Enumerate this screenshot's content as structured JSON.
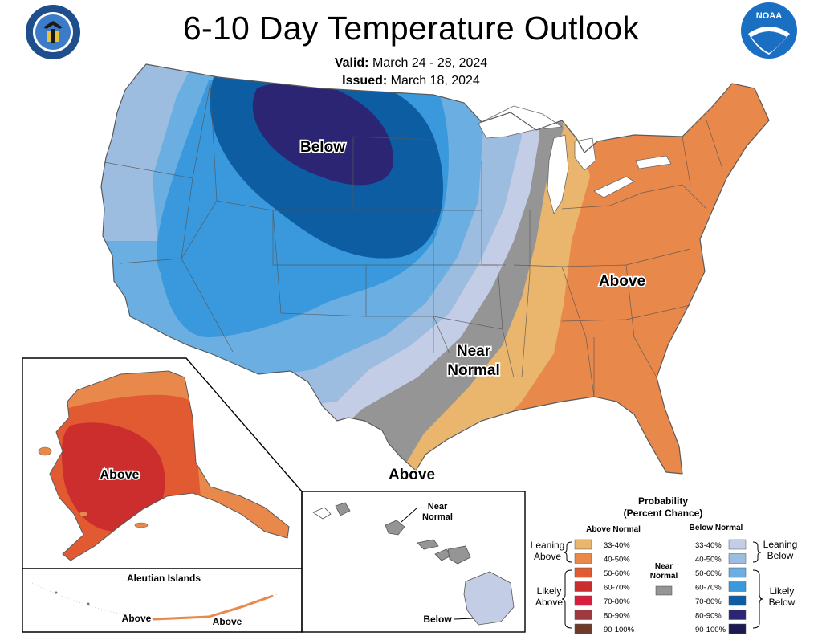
{
  "title": "6-10 Day Temperature Outlook",
  "valid_label": "Valid:",
  "valid_dates": "March 24 - 28, 2024",
  "issued_label": "Issued:",
  "issued_date": "March 18, 2024",
  "labels": {
    "conus_below": "Below",
    "conus_above_east": "Above",
    "conus_near_line1": "Near",
    "conus_near_line2": "Normal",
    "conus_above_south": "Above",
    "alaska_above": "Above",
    "aleutian_title": "Aleutian Islands",
    "aleutian_above_1": "Above",
    "aleutian_above_2": "Above",
    "hawaii_near_line1": "Near",
    "hawaii_near_line2": "Normal",
    "hawaii_below": "Below"
  },
  "legend": {
    "title_line1": "Probability",
    "title_line2": "(Percent Chance)",
    "above_header": "Above Normal",
    "below_header": "Below Normal",
    "near_line1": "Near",
    "near_line2": "Normal",
    "leaning_above_1": "Leaning",
    "leaning_above_2": "Above",
    "likely_above_1": "Likely",
    "likely_above_2": "Above",
    "leaning_below_1": "Leaning",
    "leaning_below_2": "Below",
    "likely_below_1": "Likely",
    "likely_below_2": "Below",
    "ranges": [
      "33-40%",
      "40-50%",
      "50-60%",
      "60-70%",
      "70-80%",
      "80-90%",
      "90-100%"
    ],
    "above_colors": [
      "#eab56c",
      "#e8884a",
      "#e25a32",
      "#cc2d2d",
      "#d81e3c",
      "#9c3a3d",
      "#6e3a2a"
    ],
    "below_colors": [
      "#c3cde6",
      "#9dbde0",
      "#6aaee2",
      "#3a98dc",
      "#0d5da3",
      "#2b2573",
      "#1c1a52"
    ],
    "near_color": "#959595"
  },
  "colors": {
    "below_33_40": "#c3cde6",
    "below_40_50": "#9dbde0",
    "below_50_60": "#6aaee2",
    "below_60_70": "#3a98dc",
    "below_70_80": "#0d5da3",
    "below_80_90": "#2b2573",
    "near_normal": "#959595",
    "above_33_40": "#eab56c",
    "above_40_50": "#e8884a",
    "above_50_60": "#e25a32",
    "above_60_70": "#cc2d2d"
  },
  "icons": [
    "doc-seal-icon",
    "noaa-logo-icon"
  ]
}
